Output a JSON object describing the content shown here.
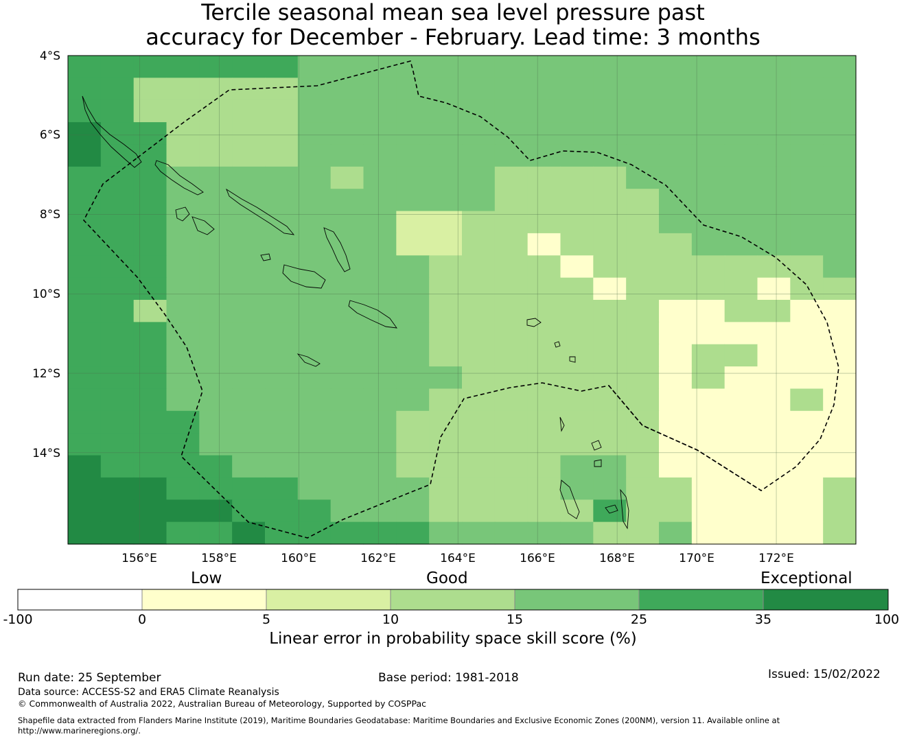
{
  "title": {
    "line1": "Tercile seasonal mean sea level pressure past",
    "line2": "accuracy for December - February. Lead time: 3 months"
  },
  "map": {
    "lat_labels": [
      "4°S",
      "6°S",
      "8°S",
      "10°S",
      "12°S",
      "14°S"
    ],
    "lon_labels": [
      "156°E",
      "158°E",
      "160°E",
      "162°E",
      "164°E",
      "166°E",
      "168°E",
      "170°E",
      "172°E"
    ],
    "extent": {
      "lon_min": 154.2,
      "lon_max": 174.0,
      "lat_min": -16.3,
      "lat_max": -4.0
    },
    "cell_deg": 0.833,
    "grid_rows": [
      "GGGGGGGHHHHHHHHHHHHHHHHH",
      "GGMMMMMHHHHHHHHHHHHHHHHH",
      "GGMMMMMHHHHHHHHHHHHHHHHH",
      "DGGMMMMHHHHHHHHHHHHHHHHH",
      "DGGMMMMHHHHHHHHHHHHHHHHH",
      "GGGHHHHHMHHHHMMMMHHHHHHH",
      "GGGHHHHHHHHHHMMMMMHHHHHH",
      "GGGHHHHHHHLLMMMMMMHHHHHH",
      "GGGHHHHHHHLLMMVMMMMHHHHH",
      "GGGHHHHHHHHMMMMVMMMMMMMH",
      "GGGHHHHHHHHMMMMMVMMMMVMM",
      "GGMHHHHHHHHMMMMMMMVVMMVV",
      "GGGHHHHHHHHMMMMMMMVVVVVV",
      "GGGHHHHHHHHMMMMMMMVMMVVV",
      "GGGHHHHHHHHHMMMMMMVMVVVV",
      "GGGHHHHHHHHMMMMMMMVVVVMV",
      "GGGGHHHHHHMMMMMMMMVVVVVV",
      "GGGGHHHHHHMMMMMMMMVVVVVV",
      "DGGGGHHHHHMMMMMHHMVVVVVV",
      "DDDGGGGHHHHMMMMHHMMVVVVM",
      "DDDDDGGGHHHMMMMMGMMVVVVM",
      "DDDGGDGGGGGHHHHHMMHVVVVM"
    ],
    "colors": {
      "D": "#228a44",
      "G": "#3fa95a",
      "H": "#78c679",
      "M": "#addd8e",
      "L": "#d9f0a3",
      "V": "#ffffcc"
    }
  },
  "colorbar": {
    "categories": [
      "Low",
      "Good",
      "Exceptional"
    ],
    "ticks": [
      "-100",
      "0",
      "5",
      "10",
      "15",
      "25",
      "35",
      "100"
    ],
    "colors": [
      "#ffffff",
      "#ffffcc",
      "#d9f0a3",
      "#addd8e",
      "#78c679",
      "#3fa95a",
      "#228a44"
    ],
    "label": "Linear error in probability space skill score (%)"
  },
  "footer": {
    "run_date": "Run date: 25 September",
    "base_period": "Base period: 1981-2018",
    "issued": "Issued: 15/02/2022",
    "data_source": "Data source: ACCESS-S2 and ERA5 Climate Reanalysis",
    "copyright": "© Commonwealth of Australia 2022, Australian Bureau of Meteorology, Supported by COSPPac",
    "shapefile_line1": "Shapefile data extracted from Flanders Marine Institute (2019), Maritime Boundaries Geodatabase: Maritime Boundaries and Exclusive Economic Zones (200NM), version 11. Available online at",
    "shapefile_line2": "http://www.marineregions.org/."
  }
}
